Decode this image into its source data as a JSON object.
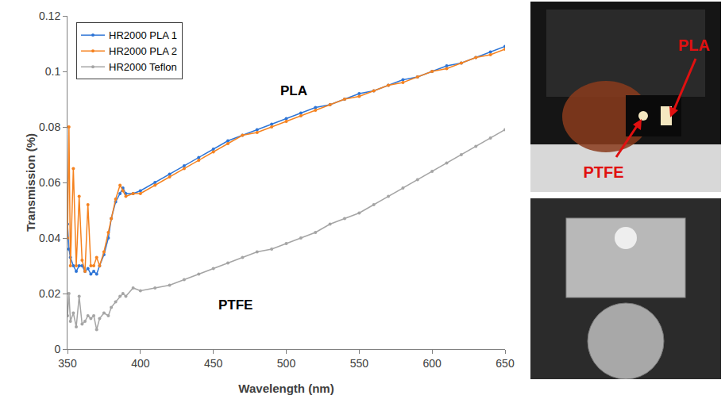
{
  "chart_data": {
    "type": "line",
    "x_label": "Wavelength (nm)",
    "y_label": "Transmission (%)",
    "x": [
      350,
      351,
      352,
      354,
      356,
      358,
      360,
      362,
      364,
      366,
      368,
      370,
      372,
      375,
      378,
      380,
      383,
      386,
      388,
      390,
      395,
      400,
      410,
      420,
      430,
      440,
      450,
      460,
      470,
      480,
      490,
      500,
      510,
      520,
      530,
      540,
      550,
      560,
      570,
      580,
      590,
      600,
      610,
      620,
      630,
      640,
      650
    ],
    "series": [
      {
        "name": "HR2000 PLA 1",
        "color": "#2E75D6",
        "marker": "circle",
        "line_style": "solid",
        "values": [
          0.045,
          0.036,
          0.033,
          0.03,
          0.028,
          0.03,
          0.03,
          0.028,
          0.029,
          0.027,
          0.028,
          0.027,
          0.03,
          0.034,
          0.04,
          0.047,
          0.053,
          0.056,
          0.058,
          0.056,
          0.056,
          0.057,
          0.06,
          0.063,
          0.066,
          0.069,
          0.072,
          0.075,
          0.077,
          0.079,
          0.081,
          0.083,
          0.085,
          0.087,
          0.088,
          0.09,
          0.092,
          0.093,
          0.095,
          0.097,
          0.098,
          0.1,
          0.102,
          0.103,
          0.105,
          0.107,
          0.109
        ]
      },
      {
        "name": "HR2000 PLA 2",
        "color": "#F5821F",
        "marker": "circle",
        "line_style": "solid",
        "values": [
          0.04,
          0.08,
          0.03,
          0.065,
          0.03,
          0.055,
          0.032,
          0.028,
          0.052,
          0.03,
          0.03,
          0.033,
          0.03,
          0.035,
          0.042,
          0.047,
          0.054,
          0.059,
          0.057,
          0.055,
          0.056,
          0.056,
          0.059,
          0.062,
          0.065,
          0.068,
          0.071,
          0.074,
          0.077,
          0.078,
          0.08,
          0.082,
          0.084,
          0.086,
          0.088,
          0.09,
          0.091,
          0.093,
          0.095,
          0.096,
          0.098,
          0.1,
          0.101,
          0.103,
          0.105,
          0.106,
          0.108
        ]
      },
      {
        "name": "HR2000 Teflon",
        "color": "#A5A5A5",
        "marker": "circle",
        "line_style": "solid",
        "values": [
          0.012,
          0.02,
          0.01,
          0.013,
          0.008,
          0.019,
          0.009,
          0.01,
          0.012,
          0.011,
          0.012,
          0.007,
          0.011,
          0.013,
          0.012,
          0.015,
          0.017,
          0.019,
          0.02,
          0.019,
          0.022,
          0.021,
          0.022,
          0.023,
          0.025,
          0.027,
          0.029,
          0.031,
          0.033,
          0.035,
          0.036,
          0.038,
          0.04,
          0.042,
          0.045,
          0.047,
          0.049,
          0.052,
          0.055,
          0.058,
          0.061,
          0.064,
          0.067,
          0.07,
          0.073,
          0.076,
          0.079
        ]
      }
    ],
    "xlim": [
      350,
      650
    ],
    "xticks": [
      350,
      400,
      450,
      500,
      550,
      600,
      650
    ],
    "ylim": [
      0,
      0.12
    ],
    "yticks": [
      0,
      0.02,
      0.04,
      0.06,
      0.08,
      0.1,
      0.12
    ],
    "grid": false,
    "legend": "top-left",
    "annotations": [
      {
        "text": "PLA",
        "x": 505,
        "y": 0.093
      },
      {
        "text": "PTFE",
        "x": 465,
        "y": 0.016
      }
    ]
  },
  "photos": [
    {
      "labels": [
        {
          "text": "PLA"
        },
        {
          "text": "PTFE"
        }
      ]
    },
    {
      "labels": []
    }
  ]
}
